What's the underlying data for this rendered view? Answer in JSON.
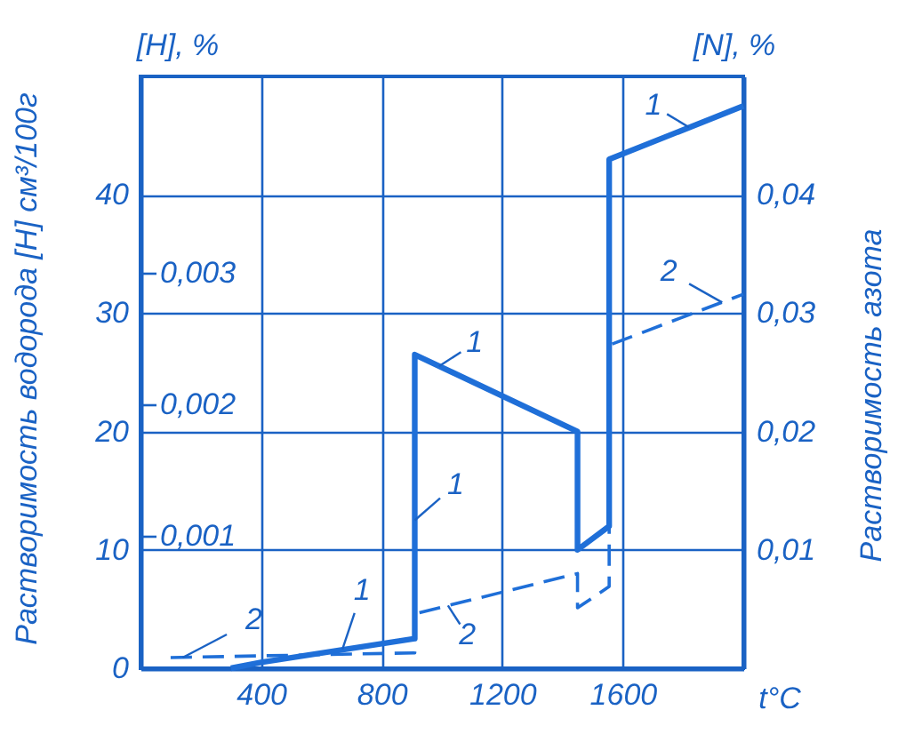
{
  "chart_data": {
    "type": "line",
    "xlabel": "t°C",
    "ylabel": "Растворимость водорода [H] см³/100г",
    "y2label": "Растворимость азота",
    "y3label": "[H], %",
    "xlim": [
      0,
      2000
    ],
    "xticks": [
      400,
      800,
      1200,
      1600
    ],
    "ylim": [
      0,
      50
    ],
    "yticks": [
      0,
      10,
      20,
      30,
      40
    ],
    "y2lim": [
      0,
      0.05
    ],
    "y2ticks": [
      {
        "value": 0.01,
        "label": "0,01"
      },
      {
        "value": 0.02,
        "label": "0,02"
      },
      {
        "value": 0.03,
        "label": "0,03"
      },
      {
        "value": 0.04,
        "label": "0,04"
      }
    ],
    "y3lim": [
      0,
      0.0045
    ],
    "y3ticks": [
      {
        "value": 0.001,
        "label": "0,001"
      },
      {
        "value": 0.002,
        "label": "0,002"
      },
      {
        "value": 0.003,
        "label": "0,003"
      }
    ],
    "grid": true,
    "series": [
      {
        "color": "#1f6fd8",
        "line_style": "solid",
        "x": [
          300,
          400,
          910,
          910,
          1450,
          1450,
          1555,
          1555,
          2000
        ],
        "values": [
          0,
          0.5,
          2.5,
          26.5,
          20,
          10,
          12,
          43,
          47.5
        ]
      },
      {
        "color": "#1f6fd8",
        "line_style": "dashed",
        "axis": "y2",
        "x": [
          100,
          910,
          910,
          1450,
          1450,
          1555,
          1555,
          2000
        ],
        "values": [
          0.0009,
          0.0013,
          0.0046,
          0.008,
          0.0051,
          0.0069,
          0.0273,
          0.0316
        ]
      }
    ],
    "annotations": [
      "[N], %",
      {
        "text": "1",
        "x": 1820,
        "y": 45.7
      },
      {
        "text": "2",
        "x": 1930,
        "y": 30.9
      },
      {
        "text": "1",
        "x": 990,
        "y": 25.5
      },
      {
        "text": "1",
        "x": 910,
        "y": 12.5
      },
      {
        "text": "1",
        "x": 670,
        "y": 1.6
      },
      {
        "text": "2",
        "x": 1020,
        "y": 5.3
      },
      {
        "text": "2",
        "x": 140,
        "y": 0.9
      }
    ]
  }
}
